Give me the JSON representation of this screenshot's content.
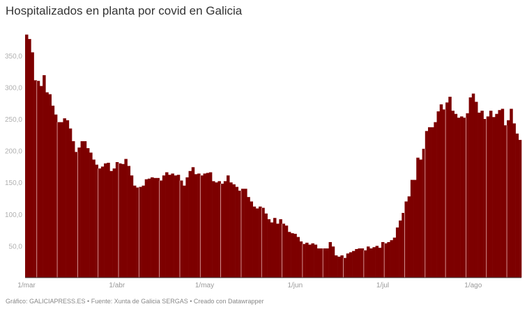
{
  "title": "Hospitalizados en planta por covid en Galicia",
  "footer": "Gráfico: GALICIAPRESS.ES • Fuente: Xunta de Galicia SERGAS • Creado con Datawrapper",
  "colors": {
    "bar": "#7d0000",
    "separator": "#e8b4b4",
    "axis": "#333333"
  },
  "chart_data": {
    "type": "bar",
    "title": "Hospitalizados en planta por covid en Galicia",
    "xlabel": "",
    "ylabel": "",
    "ylim": [
      0,
      385
    ],
    "grid": false,
    "legend": null,
    "yticks": [
      50,
      100,
      150,
      200,
      250,
      300,
      350
    ],
    "ytick_labels": [
      "50,0",
      "100,0",
      "150,0",
      "200,0",
      "250,0",
      "300,0",
      "350,0"
    ],
    "xtick_labels": [
      "1/mar",
      "1/abr",
      "1/may",
      "1/jun",
      "1/jul",
      "1/ago"
    ],
    "xtick_day_index": [
      0,
      31,
      61,
      92,
      122,
      153
    ],
    "start_date": "1/mar",
    "values": [
      383,
      376,
      355,
      311,
      310,
      302,
      319,
      292,
      289,
      271,
      257,
      245,
      245,
      251,
      248,
      235,
      215,
      198,
      205,
      215,
      215,
      204,
      197,
      186,
      178,
      172,
      175,
      180,
      181,
      168,
      172,
      182,
      180,
      179,
      187,
      176,
      161,
      145,
      142,
      143,
      145,
      155,
      156,
      158,
      157,
      157,
      153,
      161,
      166,
      162,
      164,
      161,
      162,
      153,
      145,
      158,
      168,
      174,
      163,
      164,
      161,
      164,
      165,
      166,
      152,
      150,
      152,
      148,
      152,
      161,
      150,
      147,
      143,
      137,
      140,
      140,
      127,
      120,
      112,
      109,
      112,
      110,
      101,
      92,
      87,
      94,
      85,
      92,
      85,
      82,
      72,
      70,
      69,
      64,
      57,
      53,
      55,
      52,
      54,
      52,
      46,
      46,
      46,
      46,
      56,
      49,
      35,
      33,
      35,
      31,
      38,
      40,
      42,
      45,
      46,
      46,
      43,
      49,
      46,
      48,
      50,
      47,
      56,
      54,
      56,
      59,
      63,
      79,
      90,
      102,
      120,
      128,
      154,
      154,
      189,
      186,
      203,
      231,
      237,
      237,
      245,
      262,
      273,
      265,
      276,
      285,
      263,
      258,
      252,
      254,
      252,
      259,
      284,
      290,
      277,
      260,
      263,
      250,
      254,
      263,
      253,
      258,
      264,
      266,
      240,
      248,
      266,
      243,
      227,
      217
    ],
    "source": "Xunta de Galicia SERGAS"
  },
  "axis": {
    "y_labels": [
      "50,0",
      "100,0",
      "150,0",
      "200,0",
      "250,0",
      "300,0",
      "350,0"
    ],
    "x_labels": [
      "1/mar",
      "1/abr",
      "1/may",
      "1/jun",
      "1/jul",
      "1/ago"
    ]
  }
}
